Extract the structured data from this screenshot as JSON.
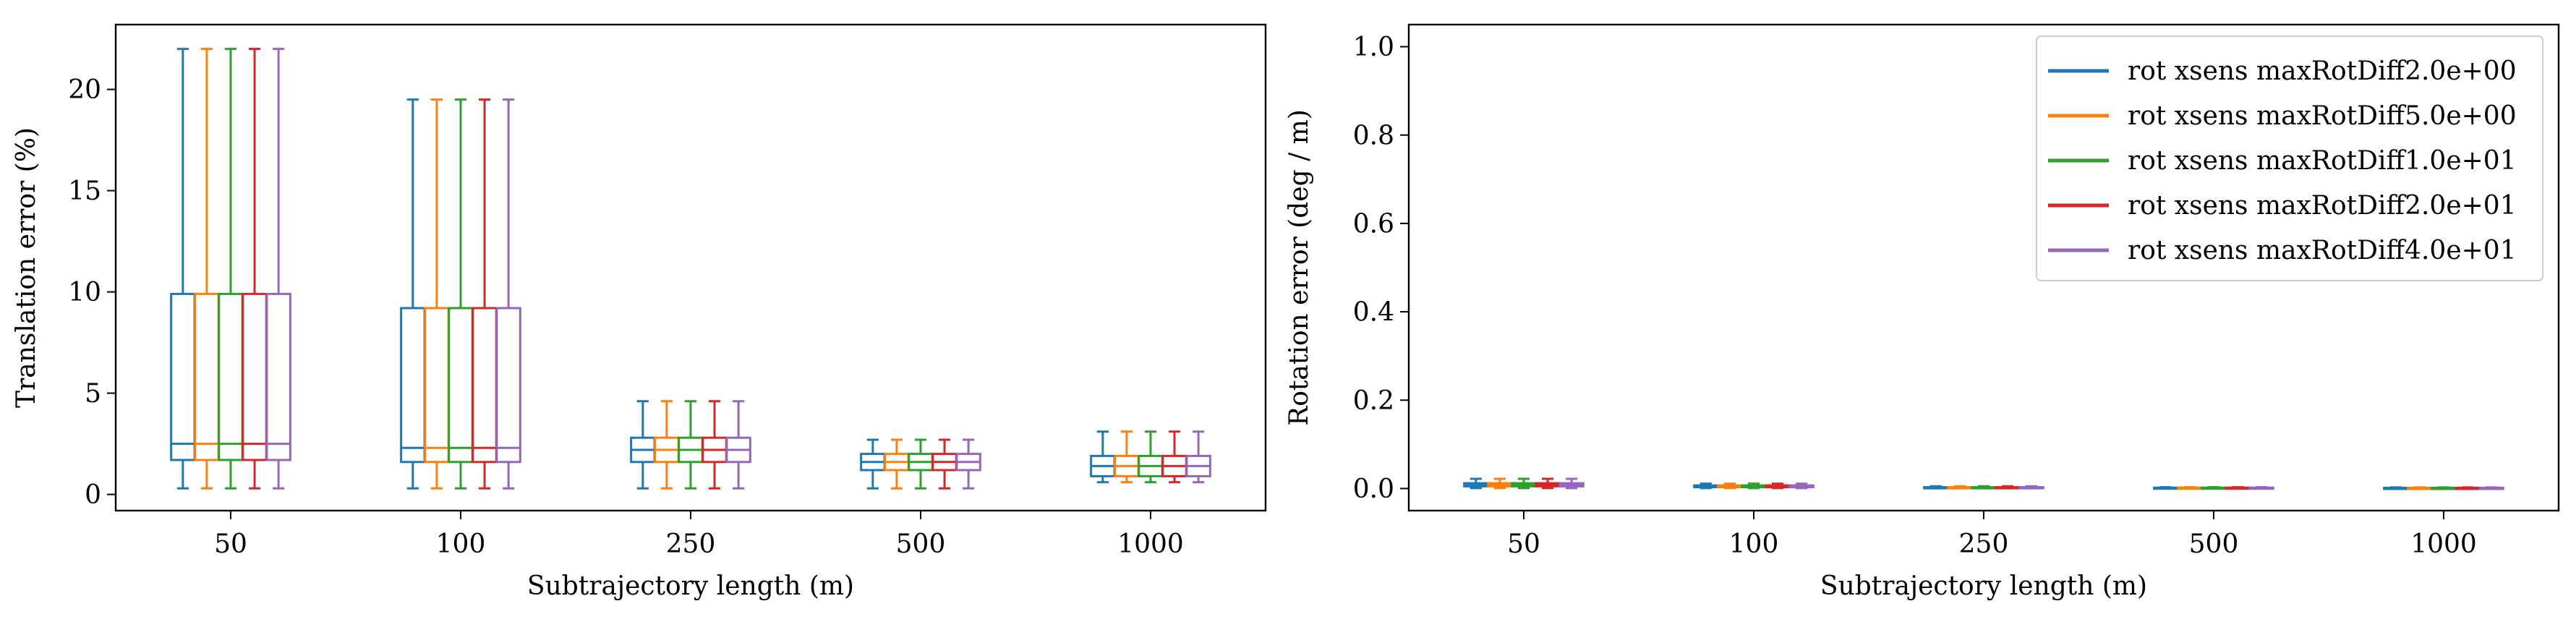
{
  "colors": {
    "series": [
      "#1f77b4",
      "#ff7f0e",
      "#2ca02c",
      "#d62728",
      "#9467bd"
    ]
  },
  "chart_data": [
    {
      "type": "box",
      "xlabel": "Subtrajectory length (m)",
      "ylabel": "Translation error (%)",
      "categories": [
        "50",
        "100",
        "250",
        "500",
        "1000"
      ],
      "ylim": [
        -0.8,
        23.2
      ],
      "yticks": [
        0,
        5,
        10,
        15,
        20
      ],
      "ytick_labels": [
        "0",
        "5",
        "10",
        "15",
        "20"
      ],
      "grid": false,
      "legend": null,
      "series": [
        {
          "name": "rot xsens maxRotDiff2.0e+00",
          "boxes": [
            [
              0.3,
              1.7,
              2.5,
              9.9,
              22.0
            ],
            [
              0.3,
              1.6,
              2.3,
              9.2,
              19.5
            ],
            [
              0.3,
              1.6,
              2.2,
              2.8,
              4.6
            ],
            [
              0.3,
              1.2,
              1.6,
              2.0,
              2.7
            ],
            [
              0.6,
              0.9,
              1.4,
              1.9,
              3.1
            ]
          ]
        },
        {
          "name": "rot xsens maxRotDiff5.0e+00",
          "boxes": [
            [
              0.3,
              1.7,
              2.5,
              9.9,
              22.0
            ],
            [
              0.3,
              1.6,
              2.3,
              9.2,
              19.5
            ],
            [
              0.3,
              1.6,
              2.2,
              2.8,
              4.6
            ],
            [
              0.3,
              1.2,
              1.6,
              2.0,
              2.7
            ],
            [
              0.6,
              0.9,
              1.4,
              1.9,
              3.1
            ]
          ]
        },
        {
          "name": "rot xsens maxRotDiff1.0e+01",
          "boxes": [
            [
              0.3,
              1.7,
              2.5,
              9.9,
              22.0
            ],
            [
              0.3,
              1.6,
              2.3,
              9.2,
              19.5
            ],
            [
              0.3,
              1.6,
              2.2,
              2.8,
              4.6
            ],
            [
              0.3,
              1.2,
              1.6,
              2.0,
              2.7
            ],
            [
              0.6,
              0.9,
              1.4,
              1.9,
              3.1
            ]
          ]
        },
        {
          "name": "rot xsens maxRotDiff2.0e+01",
          "boxes": [
            [
              0.3,
              1.7,
              2.5,
              9.9,
              22.0
            ],
            [
              0.3,
              1.6,
              2.3,
              9.2,
              19.5
            ],
            [
              0.3,
              1.6,
              2.2,
              2.8,
              4.6
            ],
            [
              0.3,
              1.2,
              1.6,
              2.0,
              2.7
            ],
            [
              0.6,
              0.9,
              1.4,
              1.9,
              3.1
            ]
          ]
        },
        {
          "name": "rot xsens maxRotDiff4.0e+01",
          "boxes": [
            [
              0.3,
              1.7,
              2.5,
              9.9,
              22.0
            ],
            [
              0.3,
              1.6,
              2.3,
              9.2,
              19.5
            ],
            [
              0.3,
              1.6,
              2.2,
              2.8,
              4.6
            ],
            [
              0.3,
              1.2,
              1.6,
              2.0,
              2.7
            ],
            [
              0.6,
              0.9,
              1.4,
              1.9,
              3.1
            ]
          ]
        }
      ]
    },
    {
      "type": "box",
      "xlabel": "Subtrajectory length (m)",
      "ylabel": "Rotation error (deg / m)",
      "categories": [
        "50",
        "100",
        "250",
        "500",
        "1000"
      ],
      "ylim": [
        -0.05,
        1.05
      ],
      "yticks": [
        0.0,
        0.2,
        0.4,
        0.6,
        0.8,
        1.0
      ],
      "ytick_labels": [
        "0.0",
        "0.2",
        "0.4",
        "0.6",
        "0.8",
        "1.0"
      ],
      "grid": false,
      "legend": "top-right",
      "series": [
        {
          "name": "rot xsens maxRotDiff2.0e+00",
          "boxes": [
            [
              0.001,
              0.005,
              0.008,
              0.012,
              0.022
            ],
            [
              0.001,
              0.003,
              0.005,
              0.007,
              0.011
            ],
            [
              0.0005,
              0.0015,
              0.002,
              0.003,
              0.005
            ],
            [
              0.0005,
              0.001,
              0.0015,
              0.002,
              0.003
            ],
            [
              0.0003,
              0.0008,
              0.001,
              0.0015,
              0.0025
            ]
          ]
        },
        {
          "name": "rot xsens maxRotDiff5.0e+00",
          "boxes": [
            [
              0.001,
              0.005,
              0.008,
              0.012,
              0.022
            ],
            [
              0.001,
              0.003,
              0.005,
              0.007,
              0.011
            ],
            [
              0.0005,
              0.0015,
              0.002,
              0.003,
              0.005
            ],
            [
              0.0005,
              0.001,
              0.0015,
              0.002,
              0.003
            ],
            [
              0.0003,
              0.0008,
              0.001,
              0.0015,
              0.0025
            ]
          ]
        },
        {
          "name": "rot xsens maxRotDiff1.0e+01",
          "boxes": [
            [
              0.001,
              0.005,
              0.008,
              0.012,
              0.022
            ],
            [
              0.001,
              0.003,
              0.005,
              0.007,
              0.011
            ],
            [
              0.0005,
              0.0015,
              0.002,
              0.003,
              0.005
            ],
            [
              0.0005,
              0.001,
              0.0015,
              0.002,
              0.003
            ],
            [
              0.0003,
              0.0008,
              0.001,
              0.0015,
              0.0025
            ]
          ]
        },
        {
          "name": "rot xsens maxRotDiff2.0e+01",
          "boxes": [
            [
              0.001,
              0.005,
              0.008,
              0.012,
              0.022
            ],
            [
              0.001,
              0.003,
              0.005,
              0.007,
              0.011
            ],
            [
              0.0005,
              0.0015,
              0.002,
              0.003,
              0.005
            ],
            [
              0.0005,
              0.001,
              0.0015,
              0.002,
              0.003
            ],
            [
              0.0003,
              0.0008,
              0.001,
              0.0015,
              0.0025
            ]
          ]
        },
        {
          "name": "rot xsens maxRotDiff4.0e+01",
          "boxes": [
            [
              0.001,
              0.005,
              0.008,
              0.012,
              0.022
            ],
            [
              0.001,
              0.003,
              0.005,
              0.007,
              0.011
            ],
            [
              0.0005,
              0.0015,
              0.002,
              0.003,
              0.005
            ],
            [
              0.0005,
              0.001,
              0.0015,
              0.002,
              0.003
            ],
            [
              0.0003,
              0.0008,
              0.001,
              0.0015,
              0.0025
            ]
          ]
        }
      ]
    }
  ]
}
